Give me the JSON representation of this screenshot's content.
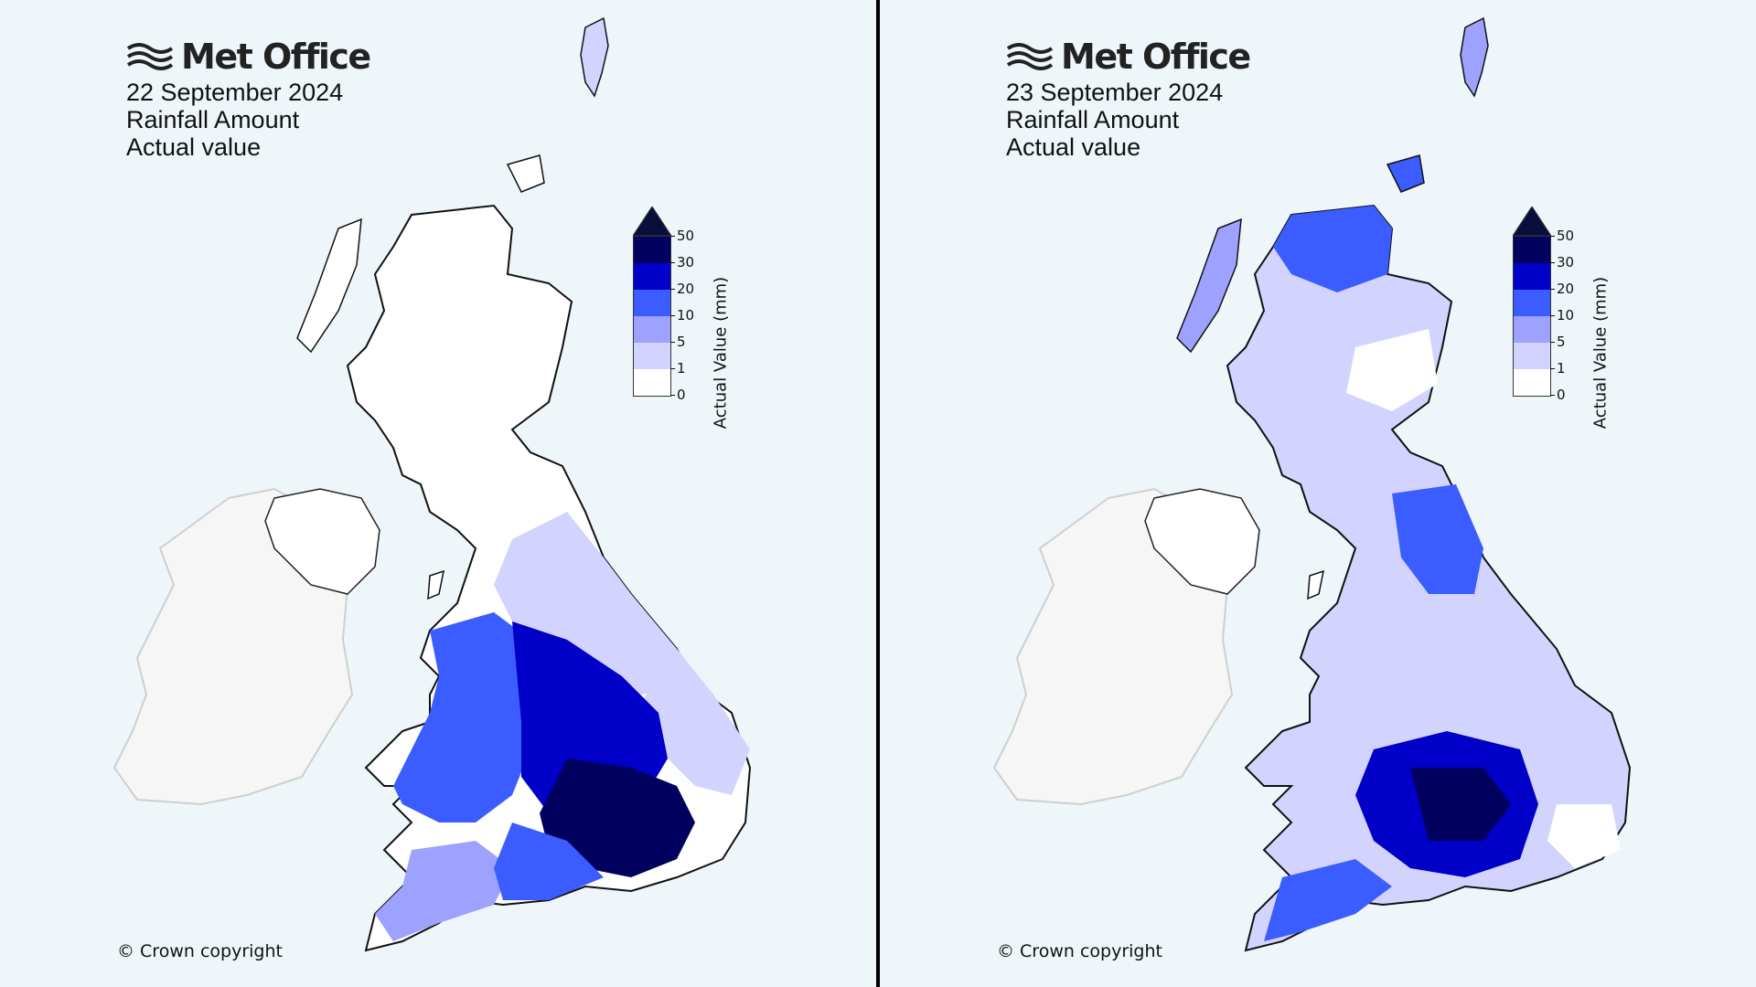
{
  "brand": "Met Office",
  "colors": {
    "background": "#eef6fa",
    "divider": "#000000"
  },
  "legend": {
    "title": "Actual Value (mm)",
    "ticks": [
      "50",
      "30",
      "20",
      "10",
      "5",
      "1",
      "0"
    ],
    "bins": [
      {
        "range": "30-50",
        "color": "#00005e"
      },
      {
        "range": "20-30",
        "color": "#0000c8"
      },
      {
        "range": "10-20",
        "color": "#3b5cff"
      },
      {
        "range": "5-10",
        "color": "#9da2ff"
      },
      {
        "range": "1-5",
        "color": "#d2d4ff"
      },
      {
        "range": "0-1",
        "color": "#ffffff"
      }
    ],
    "over_color": "#080f3b"
  },
  "panels": [
    {
      "date": "22 September 2024",
      "variable": "Rainfall Amount",
      "stat": "Actual value",
      "copyright": "© Crown copyright",
      "regions": {
        "scotland_north": "0-1",
        "scotland_south": "0-1",
        "northern_ireland": "0-1",
        "ireland": "no data",
        "north_england": "1-5",
        "yorkshire": "1-5",
        "wales": "10-20",
        "midlands": "20-30",
        "east_anglia": "1-5",
        "london_southeast": "30-50",
        "southwest": "5-10"
      }
    },
    {
      "date": "23 September 2024",
      "variable": "Rainfall Amount",
      "stat": "Actual value",
      "copyright": "© Crown copyright",
      "regions": {
        "scotland_north": "10-20",
        "scotland_south": "1-5",
        "northern_ireland": "1-5",
        "ireland": "no data",
        "north_england": "10-20",
        "yorkshire": "1-5",
        "wales": "1-5",
        "midlands": "10-20",
        "east_anglia": "1-5",
        "london_southeast": "1-5",
        "southwest": "10-20",
        "south_central": "30-50"
      }
    }
  ]
}
